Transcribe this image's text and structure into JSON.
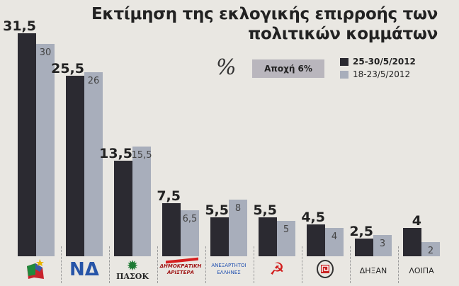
{
  "chart_data": {
    "type": "bar",
    "title": "Εκτίμηση της εκλογικής επιρροής των πολιτικών κομμάτων",
    "unit": "%",
    "annotation": "Αποχή 6%",
    "categories": [
      "",
      "ΝΔ",
      "ΠΑΣΟΚ",
      "ΔΗΜΟΚΡΑΤΙΚΗ ΑΡΙΣΤΕΡΑ",
      "ΑΝΕΞΑΡΤΗΤΟΙ ΕΛΛΗΝΕΣ",
      "",
      "",
      "ΔΗΞΑΝ",
      "ΛΟΙΠΑ"
    ],
    "category_icons": [
      "syriza-logo",
      "nd-logo",
      "pasok-logo",
      "dimar-logo",
      "anel-logo",
      "kke-hammer-sickle-logo",
      "golden-dawn-logo",
      "",
      ""
    ],
    "series": [
      {
        "name": "25-30/5/2012",
        "color": "#2b2a31",
        "labels": [
          "31,5",
          "25,5",
          "13,5",
          "7,5",
          "5,5",
          "5,5",
          "4,5",
          "2,5",
          "4"
        ],
        "values": [
          31.5,
          25.5,
          13.5,
          7.5,
          5.5,
          5.5,
          4.5,
          2.5,
          4
        ]
      },
      {
        "name": "18-23/5/2012",
        "color": "#a8aebb",
        "labels": [
          "30",
          "26",
          "15,5",
          "6,5",
          "8",
          "5",
          "4",
          "3",
          "2"
        ],
        "values": [
          30,
          26,
          15.5,
          6.5,
          8,
          5,
          4,
          3,
          2
        ]
      }
    ],
    "legend": "top-right",
    "grid": false
  }
}
